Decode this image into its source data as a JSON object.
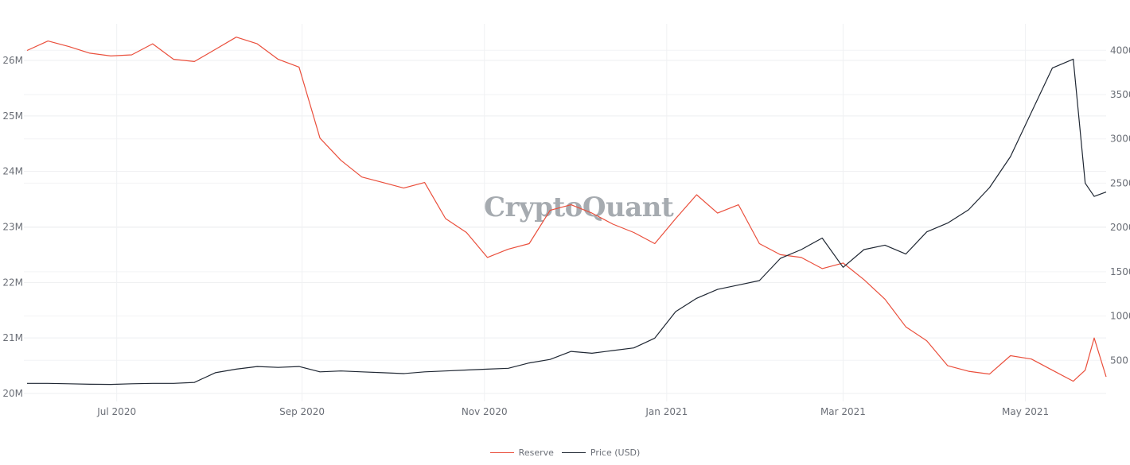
{
  "watermark": "CryptoQuant",
  "legend": {
    "items": [
      {
        "label": "Reserve",
        "color": "#ea4f3c"
      },
      {
        "label": "Price (USD)",
        "color": "#1f2733"
      }
    ]
  },
  "axes": {
    "x_ticks": [
      "Jul 2020",
      "Sep 2020",
      "Nov 2020",
      "Jan 2021",
      "Mar 2021",
      "May 2021"
    ],
    "y_left_ticks": [
      "26M",
      "25M",
      "24M",
      "23M",
      "22M",
      "21M",
      "20M"
    ],
    "y_right_ticks": [
      "4000",
      "3500",
      "3000",
      "2500",
      "2000",
      "1500",
      "1000",
      "500"
    ]
  },
  "chart_data": {
    "type": "line",
    "title": "",
    "xlabel": "",
    "ylabel_left": "Reserve",
    "ylabel_right": "Price (USD)",
    "x_range": [
      "2020-06-01",
      "2021-05-28"
    ],
    "ylim_left": [
      19800000,
      26700000
    ],
    "ylim_right": [
      0,
      4200
    ],
    "grid": true,
    "legend_position": "bottom-center",
    "x": [
      "2020-06-01",
      "2020-06-08",
      "2020-06-15",
      "2020-06-22",
      "2020-06-29",
      "2020-07-06",
      "2020-07-13",
      "2020-07-20",
      "2020-07-27",
      "2020-08-03",
      "2020-08-10",
      "2020-08-17",
      "2020-08-24",
      "2020-08-31",
      "2020-09-07",
      "2020-09-14",
      "2020-09-21",
      "2020-09-28",
      "2020-10-05",
      "2020-10-12",
      "2020-10-19",
      "2020-10-26",
      "2020-11-02",
      "2020-11-09",
      "2020-11-16",
      "2020-11-23",
      "2020-11-30",
      "2020-12-07",
      "2020-12-14",
      "2020-12-21",
      "2020-12-28",
      "2021-01-04",
      "2021-01-11",
      "2021-01-18",
      "2021-01-25",
      "2021-02-01",
      "2021-02-08",
      "2021-02-15",
      "2021-02-22",
      "2021-03-01",
      "2021-03-08",
      "2021-03-15",
      "2021-03-22",
      "2021-03-29",
      "2021-04-05",
      "2021-04-12",
      "2021-04-19",
      "2021-04-26",
      "2021-05-03",
      "2021-05-10",
      "2021-05-17",
      "2021-05-21",
      "2021-05-24",
      "2021-05-28"
    ],
    "series": [
      {
        "name": "Reserve",
        "color": "#ea4f3c",
        "axis": "left",
        "values": [
          26180000,
          26350000,
          26250000,
          26130000,
          26080000,
          26100000,
          26300000,
          26020000,
          25980000,
          26200000,
          26420000,
          26300000,
          26020000,
          25880000,
          24600000,
          24200000,
          23900000,
          23800000,
          23700000,
          23800000,
          23150000,
          22900000,
          22450000,
          22600000,
          22700000,
          23300000,
          23400000,
          23250000,
          23050000,
          22900000,
          22700000,
          23150000,
          23580000,
          23250000,
          23400000,
          22700000,
          22500000,
          22450000,
          22250000,
          22350000,
          22050000,
          21700000,
          21200000,
          20950000,
          20500000,
          20400000,
          20350000,
          20680000,
          20620000,
          20420000,
          20220000,
          20420000,
          21000000,
          20300000
        ]
      },
      {
        "name": "Price (USD)",
        "color": "#1f2733",
        "axis": "right",
        "values": [
          240,
          240,
          235,
          230,
          228,
          235,
          240,
          240,
          250,
          360,
          400,
          430,
          420,
          430,
          370,
          380,
          370,
          360,
          350,
          370,
          380,
          390,
          400,
          410,
          470,
          510,
          600,
          580,
          610,
          640,
          750,
          1050,
          1200,
          1300,
          1350,
          1400,
          1650,
          1750,
          1880,
          1550,
          1750,
          1800,
          1700,
          1950,
          2050,
          2200,
          2450,
          2800,
          3300,
          3800,
          3900,
          2500,
          2350,
          2400
        ]
      }
    ]
  }
}
